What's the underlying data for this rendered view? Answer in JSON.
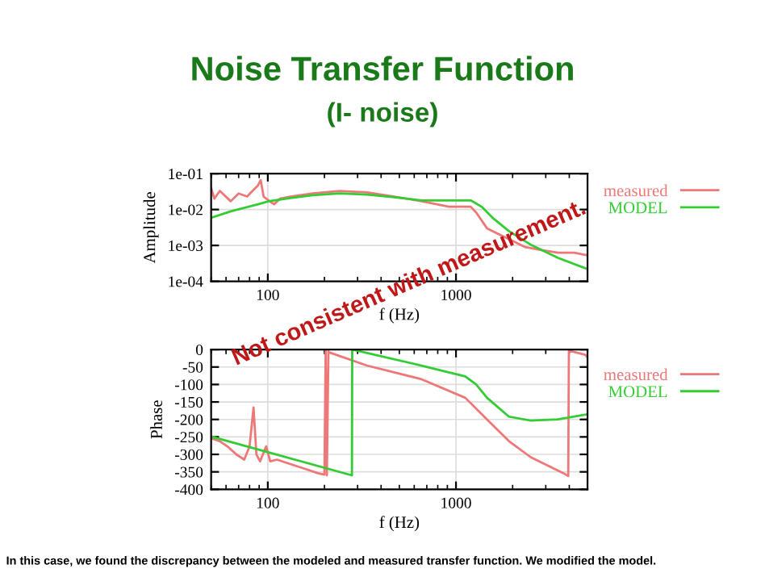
{
  "chart_data": [
    {
      "type": "line",
      "title": "Noise Transfer Function",
      "subtitle": "(I- noise)",
      "xlabel": "f (Hz)",
      "ylabel": "Amplitude",
      "log": "xy",
      "xlim": [
        50,
        5000
      ],
      "xticks": [
        100,
        1000
      ],
      "ylim": [
        0.0001,
        0.1
      ],
      "yticks": [
        {
          "value": 0.0001,
          "label": "1e-04"
        },
        {
          "value": 0.001,
          "label": "1e-03"
        },
        {
          "value": 0.01,
          "label": "1e-02"
        },
        {
          "value": 0.1,
          "label": "1e-01"
        }
      ],
      "grid": true,
      "legend": "right",
      "marker": "none",
      "line_style": "solid",
      "annotations": [
        "Not consistent with measurement."
      ],
      "series": [
        {
          "name": "measured",
          "color": "#ee7777",
          "x": [
            50,
            52,
            55.6,
            63.5,
            70,
            77.6,
            83,
            88.7,
            91.7,
            95,
            101,
            108,
            116,
            132,
            173,
            241,
            337,
            470,
            657,
            917,
            1197,
            1280,
            1462,
            1672,
            1911,
            2334,
            2851,
            3483,
            4254,
            5000
          ],
          "values": [
            0.04,
            0.02,
            0.033,
            0.017,
            0.028,
            0.023,
            0.033,
            0.047,
            0.066,
            0.023,
            0.018,
            0.014,
            0.02,
            0.023,
            0.028,
            0.033,
            0.03,
            0.023,
            0.017,
            0.012,
            0.012,
            0.0083,
            0.003,
            0.0021,
            0.0015,
            0.0009,
            0.00074,
            0.00063,
            0.00063,
            0.00053
          ]
        },
        {
          "name": "MODEL",
          "color": "#33cc33",
          "x": [
            50,
            63.5,
            88.7,
            101,
            132,
            173,
            241,
            337,
            470,
            657,
            917,
            1197,
            1368,
            1565,
            1911,
            2495,
            3483,
            5000
          ],
          "values": [
            0.0059,
            0.0089,
            0.014,
            0.017,
            0.021,
            0.025,
            0.028,
            0.026,
            0.022,
            0.018,
            0.018,
            0.018,
            0.012,
            0.0059,
            0.0025,
            0.00105,
            0.00045,
            0.00022
          ]
        }
      ]
    },
    {
      "type": "line",
      "xlabel": "f (Hz)",
      "ylabel": "Phase",
      "log": "x",
      "xlim": [
        50,
        5000
      ],
      "xticks": [
        100,
        1000
      ],
      "ylim": [
        -400,
        0
      ],
      "yticks": [
        -400,
        -350,
        -300,
        -250,
        -200,
        -150,
        -100,
        -50,
        0
      ],
      "grid": true,
      "legend": "right",
      "marker": "none",
      "line_style": "solid",
      "annotations": [
        "In this case, we found the discrepancy between the modeled and measured transfer function. We modified the model."
      ],
      "series": [
        {
          "name": "measured",
          "color": "#ee7777",
          "x": [
            50,
            55.5,
            61,
            68,
            75,
            80,
            84,
            87,
            91,
            98,
            103,
            112,
            124,
            151,
            185,
            200,
            203,
            206,
            210,
            212,
            337,
            657,
            1120,
            1462,
            1911,
            2495,
            3730,
            3950,
            3980,
            4865,
            5000
          ],
          "values": [
            -254,
            -262,
            -277,
            -300,
            -315,
            -277,
            -166,
            -300,
            -320,
            -277,
            -320,
            -315,
            -323,
            -338,
            -354,
            -358,
            0,
            -360,
            -5,
            -8,
            -46,
            -85,
            -138,
            -200,
            -262,
            -308,
            -354,
            -362,
            -3,
            -15,
            -23
          ]
        },
        {
          "name": "MODEL",
          "color": "#33cc33",
          "x": [
            50,
            280,
            281,
            657,
            1120,
            1280,
            1462,
            1911,
            2495,
            3483,
            5000
          ],
          "values": [
            -249,
            -360,
            0,
            -46,
            -77,
            -100,
            -138,
            -192,
            -203,
            -200,
            -185
          ]
        }
      ]
    }
  ]
}
